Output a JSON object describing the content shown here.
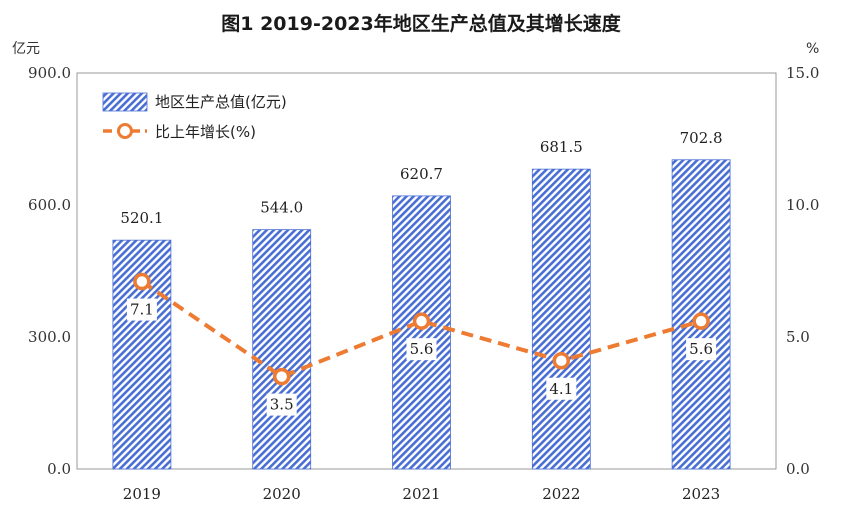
{
  "chart_data": {
    "type": "bar",
    "title": "图1 2019-2023年地区生产总值及其增长速度",
    "y_left_unit": "亿元",
    "y_right_unit": "%",
    "categories": [
      "2019",
      "2020",
      "2021",
      "2022",
      "2023"
    ],
    "series": [
      {
        "name": "地区生产总值(亿元)",
        "type": "bar",
        "axis": "left",
        "values": [
          520.1,
          544.0,
          620.7,
          681.5,
          702.8
        ],
        "labels": [
          "520.1",
          "544.0",
          "620.7",
          "681.5",
          "702.8"
        ]
      },
      {
        "name": "比上年增长(%)",
        "type": "line",
        "axis": "right",
        "values": [
          7.1,
          3.5,
          5.6,
          4.1,
          5.6
        ],
        "labels": [
          "7.1",
          "3.5",
          "5.6",
          "4.1",
          "5.6"
        ]
      }
    ],
    "y_left": {
      "min": 0,
      "max": 900,
      "ticks": [
        "0.0",
        "300.0",
        "600.0",
        "900.0"
      ]
    },
    "y_right": {
      "min": 0,
      "max": 15,
      "ticks": [
        "0.0",
        "5.0",
        "10.0",
        "15.0"
      ]
    },
    "legend_position": "top-left",
    "grid": false,
    "colors": {
      "bar_stripe": "#4a6fd4",
      "bar_bg": "#ffffff",
      "bar_border": "#4a6fd4",
      "line": "#ee7b32",
      "axis": "#999999"
    }
  }
}
